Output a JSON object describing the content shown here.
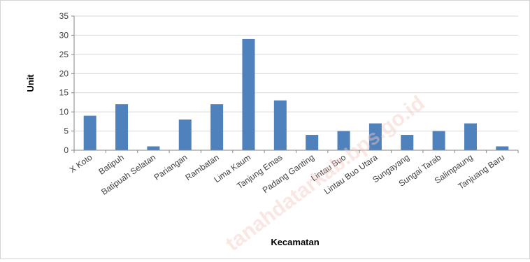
{
  "chart_data": {
    "type": "bar",
    "categories": [
      "X Koto",
      "Batipuh",
      "Batipuah Selatan",
      "Pariangan",
      "Rambatan",
      "Lima Kaum",
      "Tanjung Emas",
      "Padang Ganting",
      "Lintau Buo",
      "Lintau Buo Utara",
      "Sungayang",
      "Sungai Tarab",
      "Salimpaung",
      "Tanjuang Baru"
    ],
    "values": [
      9,
      12,
      1,
      8,
      12,
      29,
      13,
      4,
      5,
      7,
      4,
      5,
      7,
      1
    ],
    "xlabel": "Kecamatan",
    "ylabel": "Unit",
    "ylim": [
      0,
      35
    ],
    "yticks": [
      0,
      5,
      10,
      15,
      20,
      25,
      30,
      35
    ],
    "grid": true,
    "legend": "none",
    "bar_color": "#4f81bd",
    "grid_color": "#d9d9d9",
    "axis_color": "#868686"
  },
  "watermark": {
    "text": "tanahdatarkab.bps.go.id"
  }
}
